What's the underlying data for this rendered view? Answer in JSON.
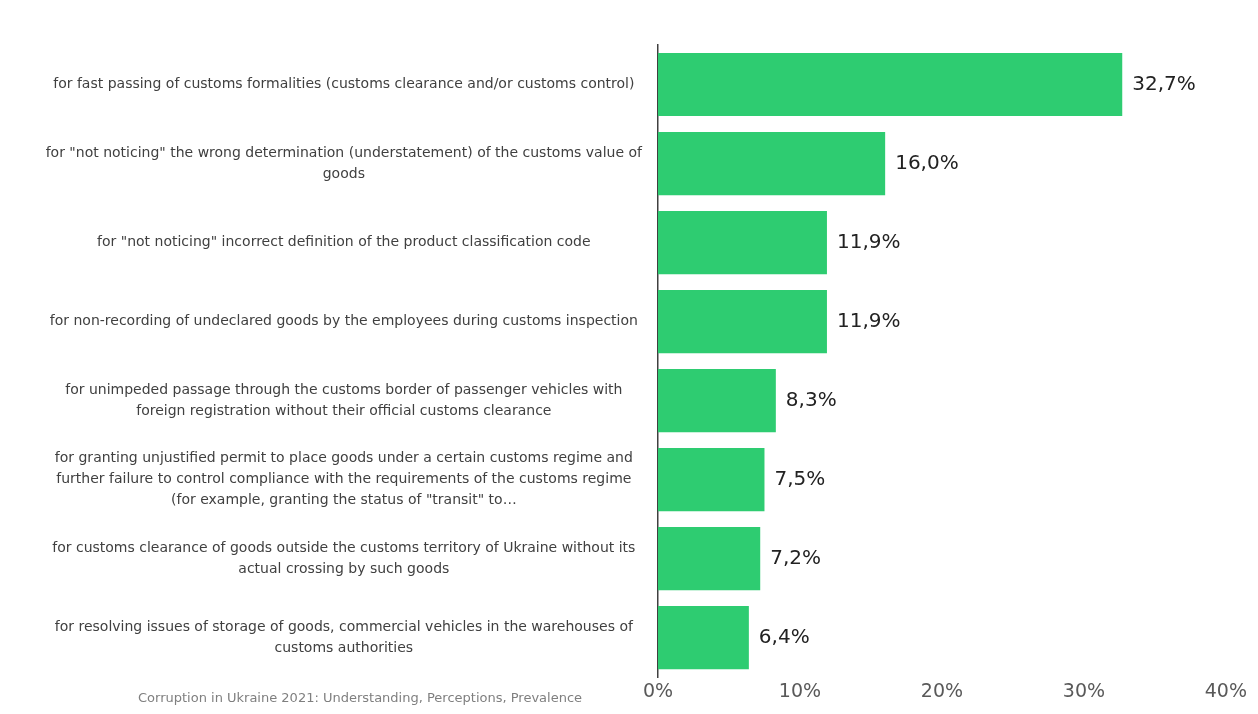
{
  "chart_data": {
    "type": "bar",
    "orientation": "horizontal",
    "categories": [
      "for fast passing of customs formalities (customs clearance and/or customs control)",
      "for \"not noticing\" the wrong determination (understatement) of the customs value of goods",
      "for \"not noticing\" incorrect definition of the product classification code",
      "for non-recording of undeclared goods by the employees during customs inspection",
      "for unimpeded passage through the customs border of passenger vehicles with foreign registration without their official customs clearance",
      "for granting unjustified permit to place goods under a certain customs regime and further failure to control compliance with the requirements of the customs regime (for example, granting the status of \"transit\" to…",
      "for customs clearance of goods outside the customs territory of Ukraine without its actual crossing by such goods",
      "for resolving issues of storage of goods, commercial vehicles in the warehouses of customs authorities"
    ],
    "values": [
      32.7,
      16.0,
      11.9,
      11.9,
      8.3,
      7.5,
      7.2,
      6.4
    ],
    "value_labels": [
      "32,7%",
      "16,0%",
      "11,9%",
      "11,9%",
      "8,3%",
      "7,5%",
      "7,2%",
      "6,4%"
    ],
    "color": "#2ecc71",
    "xlim": [
      0,
      40
    ],
    "xticks": [
      {
        "value": 0,
        "label": "0%"
      },
      {
        "value": 10,
        "label": "10%"
      },
      {
        "value": 20,
        "label": "20%"
      },
      {
        "value": 30,
        "label": "30%"
      },
      {
        "value": 40,
        "label": "40%"
      }
    ],
    "grid": false,
    "legend": false,
    "annotations": [
      "Corruption in Ukraine 2021: Understanding, Perceptions, Prevalence"
    ]
  }
}
